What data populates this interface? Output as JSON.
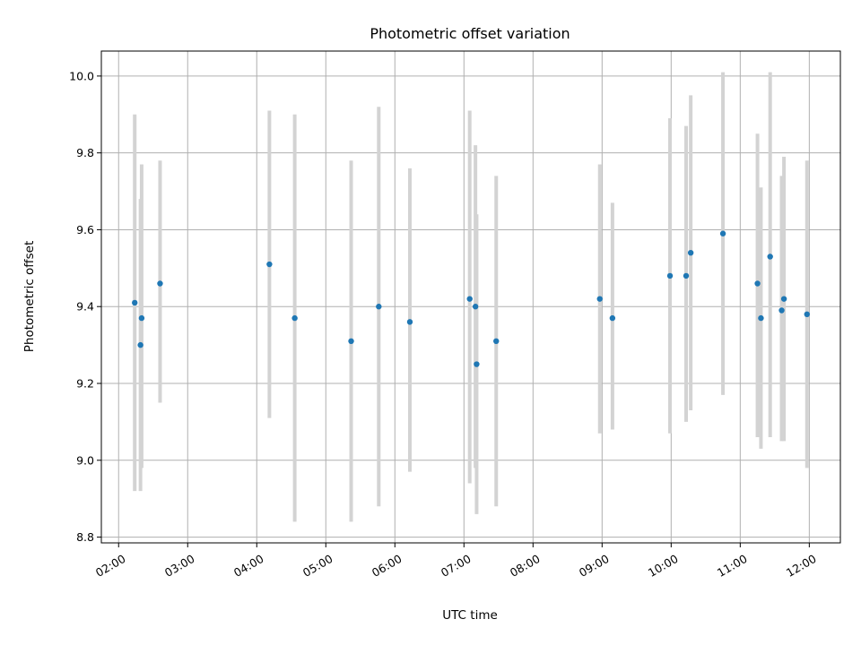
{
  "chart_data": {
    "type": "scatter",
    "title": "Photometric offset variation",
    "xlabel": "UTC time",
    "ylabel": "Photometric offset",
    "xlim": [
      "01:45",
      "12:27"
    ],
    "ylim": [
      8.785,
      10.065
    ],
    "x_ticks": [
      "02:00",
      "03:00",
      "04:00",
      "05:00",
      "06:00",
      "07:00",
      "08:00",
      "09:00",
      "10:00",
      "11:00",
      "12:00"
    ],
    "y_ticks": [
      8.8,
      9.0,
      9.2,
      9.4,
      9.6,
      9.8,
      10.0
    ],
    "y_tick_labels": [
      "8.8",
      "9.0",
      "9.2",
      "9.4",
      "9.6",
      "9.8",
      "10.0"
    ],
    "grid": true,
    "colors": {
      "points": "#1f77b4",
      "error_bars": "#d3d3d3"
    },
    "points": [
      {
        "x": "02:14",
        "y": 9.41,
        "err_low": 8.92,
        "err_high": 9.9
      },
      {
        "x": "02:19",
        "y": 9.3,
        "err_low": 8.92,
        "err_high": 9.68
      },
      {
        "x": "02:20",
        "y": 9.37,
        "err_low": 8.98,
        "err_high": 9.77
      },
      {
        "x": "02:36",
        "y": 9.46,
        "err_low": 9.15,
        "err_high": 9.78
      },
      {
        "x": "04:11",
        "y": 9.51,
        "err_low": 9.11,
        "err_high": 9.91
      },
      {
        "x": "04:33",
        "y": 9.37,
        "err_low": 8.84,
        "err_high": 9.9
      },
      {
        "x": "05:22",
        "y": 9.31,
        "err_low": 8.84,
        "err_high": 9.78
      },
      {
        "x": "05:46",
        "y": 9.4,
        "err_low": 8.88,
        "err_high": 9.92
      },
      {
        "x": "06:13",
        "y": 9.36,
        "err_low": 8.97,
        "err_high": 9.76
      },
      {
        "x": "07:05",
        "y": 9.42,
        "err_low": 8.94,
        "err_high": 9.91
      },
      {
        "x": "07:10",
        "y": 9.4,
        "err_low": 8.98,
        "err_high": 9.82
      },
      {
        "x": "07:11",
        "y": 9.25,
        "err_low": 8.86,
        "err_high": 9.64
      },
      {
        "x": "07:28",
        "y": 9.31,
        "err_low": 8.88,
        "err_high": 9.74
      },
      {
        "x": "08:58",
        "y": 9.42,
        "err_low": 9.07,
        "err_high": 9.77
      },
      {
        "x": "09:09",
        "y": 9.37,
        "err_low": 9.08,
        "err_high": 9.67
      },
      {
        "x": "09:59",
        "y": 9.48,
        "err_low": 9.07,
        "err_high": 9.89
      },
      {
        "x": "10:13",
        "y": 9.48,
        "err_low": 9.1,
        "err_high": 9.87
      },
      {
        "x": "10:17",
        "y": 9.54,
        "err_low": 9.13,
        "err_high": 9.95
      },
      {
        "x": "10:45",
        "y": 9.59,
        "err_low": 9.17,
        "err_high": 10.01
      },
      {
        "x": "11:15",
        "y": 9.46,
        "err_low": 9.06,
        "err_high": 9.85
      },
      {
        "x": "11:18",
        "y": 9.37,
        "err_low": 9.03,
        "err_high": 9.71
      },
      {
        "x": "11:26",
        "y": 9.53,
        "err_low": 9.06,
        "err_high": 10.01
      },
      {
        "x": "11:36",
        "y": 9.39,
        "err_low": 9.05,
        "err_high": 9.74
      },
      {
        "x": "11:38",
        "y": 9.42,
        "err_low": 9.05,
        "err_high": 9.79
      },
      {
        "x": "11:58",
        "y": 9.38,
        "err_low": 8.98,
        "err_high": 9.78
      }
    ]
  }
}
